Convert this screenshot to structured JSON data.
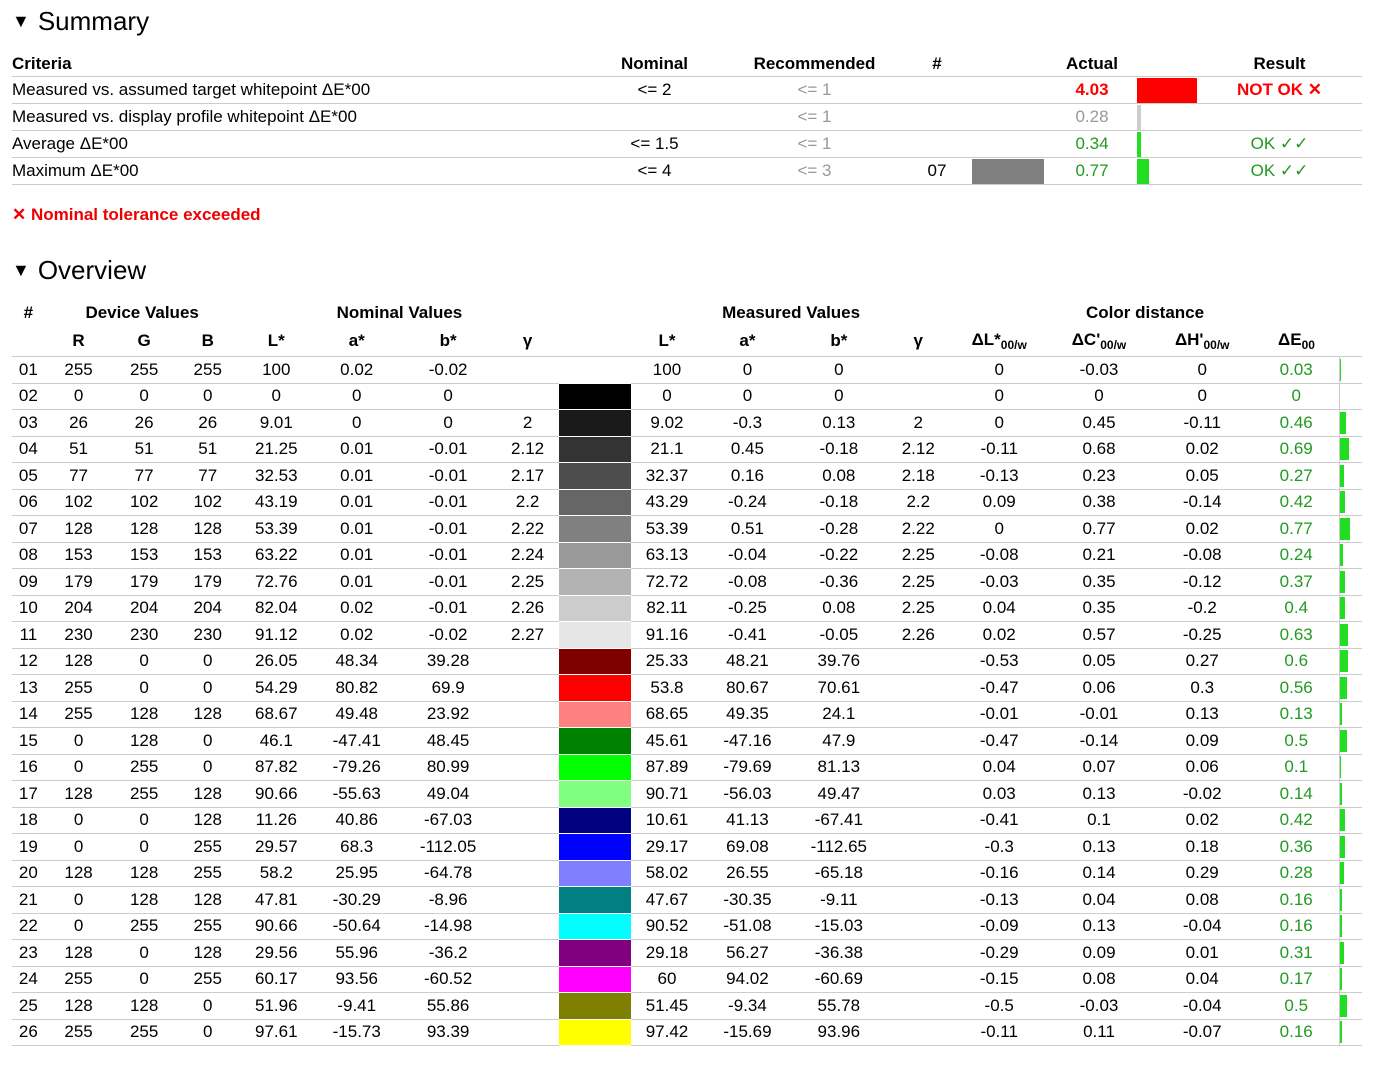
{
  "summary": {
    "heading": "Summary",
    "headers": {
      "criteria": "Criteria",
      "nominal": "Nominal",
      "recommended": "Recommended",
      "num": "#",
      "actual": "Actual",
      "result": "Result"
    },
    "rows": [
      {
        "criteria": "Measured vs. assumed target whitepoint ΔE*00",
        "nominal": "<= 2",
        "recommended": "<= 1",
        "num": "",
        "actual": "4.03",
        "result": "NOT OK ✕",
        "status": "fail",
        "bar_fraction": 1.0,
        "bar_color": "#ff0000"
      },
      {
        "criteria": "Measured vs. display profile whitepoint ΔE*00",
        "nominal": "",
        "recommended": "<= 1",
        "num": "",
        "actual": "0.28",
        "result": "",
        "status": "info",
        "bar_fraction": 0.05,
        "bar_color": "#cccccc"
      },
      {
        "criteria": "Average ΔE*00",
        "nominal": "<= 1.5",
        "recommended": "<= 1",
        "num": "",
        "actual": "0.34",
        "result": "OK ✓✓",
        "status": "ok",
        "bar_fraction": 0.07,
        "bar_color": "#22dd22"
      },
      {
        "criteria": "Maximum ΔE*00",
        "nominal": "<= 4",
        "recommended": "<= 3",
        "num": "07",
        "actual": "0.77",
        "result": "OK ✓✓",
        "status": "ok",
        "bar_fraction": 0.2,
        "bar_color": "#22dd22",
        "patch_color": "#808080"
      }
    ],
    "warning": "✕ Nominal tolerance exceeded"
  },
  "overview": {
    "heading": "Overview",
    "group_headers": {
      "num": "#",
      "device": "Device Values",
      "nominal": "Nominal Values",
      "measured": "Measured Values",
      "distance": "Color distance"
    },
    "col_headers": {
      "r": "R",
      "g": "G",
      "b": "B",
      "L": "L*",
      "a": "a*",
      "bb": "b*",
      "gamma": "γ",
      "mL": "L*",
      "ma": "a*",
      "mb": "b*",
      "mgamma": "γ",
      "dL": "ΔL*",
      "dC": "ΔC'",
      "dH": "ΔH'",
      "dE": "ΔE",
      "sub_w": "00/w",
      "sub": "00"
    },
    "rows": [
      [
        "01",
        "255",
        "255",
        "255",
        "100",
        "0.02",
        "-0.02",
        "",
        "#ffffff",
        "100",
        "0",
        "0",
        "",
        "0",
        "-0.03",
        "0",
        "0.03"
      ],
      [
        "02",
        "0",
        "0",
        "0",
        "0",
        "0",
        "0",
        "",
        "#000000",
        "0",
        "0",
        "0",
        "",
        "0",
        "0",
        "0",
        "0"
      ],
      [
        "03",
        "26",
        "26",
        "26",
        "9.01",
        "0",
        "0",
        "2",
        "#1a1a1a",
        "9.02",
        "-0.3",
        "0.13",
        "2",
        "0",
        "0.45",
        "-0.11",
        "0.46"
      ],
      [
        "04",
        "51",
        "51",
        "51",
        "21.25",
        "0.01",
        "-0.01",
        "2.12",
        "#333333",
        "21.1",
        "0.45",
        "-0.18",
        "2.12",
        "-0.11",
        "0.68",
        "0.02",
        "0.69"
      ],
      [
        "05",
        "77",
        "77",
        "77",
        "32.53",
        "0.01",
        "-0.01",
        "2.17",
        "#4d4d4d",
        "32.37",
        "0.16",
        "0.08",
        "2.18",
        "-0.13",
        "0.23",
        "0.05",
        "0.27"
      ],
      [
        "06",
        "102",
        "102",
        "102",
        "43.19",
        "0.01",
        "-0.01",
        "2.2",
        "#666666",
        "43.29",
        "-0.24",
        "-0.18",
        "2.2",
        "0.09",
        "0.38",
        "-0.14",
        "0.42"
      ],
      [
        "07",
        "128",
        "128",
        "128",
        "53.39",
        "0.01",
        "-0.01",
        "2.22",
        "#808080",
        "53.39",
        "0.51",
        "-0.28",
        "2.22",
        "0",
        "0.77",
        "0.02",
        "0.77"
      ],
      [
        "08",
        "153",
        "153",
        "153",
        "63.22",
        "0.01",
        "-0.01",
        "2.24",
        "#999999",
        "63.13",
        "-0.04",
        "-0.22",
        "2.25",
        "-0.08",
        "0.21",
        "-0.08",
        "0.24"
      ],
      [
        "09",
        "179",
        "179",
        "179",
        "72.76",
        "0.01",
        "-0.01",
        "2.25",
        "#b3b3b3",
        "72.72",
        "-0.08",
        "-0.36",
        "2.25",
        "-0.03",
        "0.35",
        "-0.12",
        "0.37"
      ],
      [
        "10",
        "204",
        "204",
        "204",
        "82.04",
        "0.02",
        "-0.01",
        "2.26",
        "#cccccc",
        "82.11",
        "-0.25",
        "0.08",
        "2.25",
        "0.04",
        "0.35",
        "-0.2",
        "0.4"
      ],
      [
        "11",
        "230",
        "230",
        "230",
        "91.12",
        "0.02",
        "-0.02",
        "2.27",
        "#e6e6e6",
        "91.16",
        "-0.41",
        "-0.05",
        "2.26",
        "0.02",
        "0.57",
        "-0.25",
        "0.63"
      ],
      [
        "12",
        "128",
        "0",
        "0",
        "26.05",
        "48.34",
        "39.28",
        "",
        "#800000",
        "25.33",
        "48.21",
        "39.76",
        "",
        "-0.53",
        "0.05",
        "0.27",
        "0.6"
      ],
      [
        "13",
        "255",
        "0",
        "0",
        "54.29",
        "80.82",
        "69.9",
        "",
        "#ff0000",
        "53.8",
        "80.67",
        "70.61",
        "",
        "-0.47",
        "0.06",
        "0.3",
        "0.56"
      ],
      [
        "14",
        "255",
        "128",
        "128",
        "68.67",
        "49.48",
        "23.92",
        "",
        "#ff8080",
        "68.65",
        "49.35",
        "24.1",
        "",
        "-0.01",
        "-0.01",
        "0.13",
        "0.13"
      ],
      [
        "15",
        "0",
        "128",
        "0",
        "46.1",
        "-47.41",
        "48.45",
        "",
        "#008000",
        "45.61",
        "-47.16",
        "47.9",
        "",
        "-0.47",
        "-0.14",
        "0.09",
        "0.5"
      ],
      [
        "16",
        "0",
        "255",
        "0",
        "87.82",
        "-79.26",
        "80.99",
        "",
        "#00ff00",
        "87.89",
        "-79.69",
        "81.13",
        "",
        "0.04",
        "0.07",
        "0.06",
        "0.1"
      ],
      [
        "17",
        "128",
        "255",
        "128",
        "90.66",
        "-55.63",
        "49.04",
        "",
        "#80ff80",
        "90.71",
        "-56.03",
        "49.47",
        "",
        "0.03",
        "0.13",
        "-0.02",
        "0.14"
      ],
      [
        "18",
        "0",
        "0",
        "128",
        "11.26",
        "40.86",
        "-67.03",
        "",
        "#000080",
        "10.61",
        "41.13",
        "-67.41",
        "",
        "-0.41",
        "0.1",
        "0.02",
        "0.42"
      ],
      [
        "19",
        "0",
        "0",
        "255",
        "29.57",
        "68.3",
        "-112.05",
        "",
        "#0000ff",
        "29.17",
        "69.08",
        "-112.65",
        "",
        "-0.3",
        "0.13",
        "0.18",
        "0.36"
      ],
      [
        "20",
        "128",
        "128",
        "255",
        "58.2",
        "25.95",
        "-64.78",
        "",
        "#8080ff",
        "58.02",
        "26.55",
        "-65.18",
        "",
        "-0.16",
        "0.14",
        "0.29",
        "0.28"
      ],
      [
        "21",
        "0",
        "128",
        "128",
        "47.81",
        "-30.29",
        "-8.96",
        "",
        "#008080",
        "47.67",
        "-30.35",
        "-9.11",
        "",
        "-0.13",
        "0.04",
        "0.08",
        "0.16"
      ],
      [
        "22",
        "0",
        "255",
        "255",
        "90.66",
        "-50.64",
        "-14.98",
        "",
        "#00ffff",
        "90.52",
        "-51.08",
        "-15.03",
        "",
        "-0.09",
        "0.13",
        "-0.04",
        "0.16"
      ],
      [
        "23",
        "128",
        "0",
        "128",
        "29.56",
        "55.96",
        "-36.2",
        "",
        "#800080",
        "29.18",
        "56.27",
        "-36.38",
        "",
        "-0.29",
        "0.09",
        "0.01",
        "0.31"
      ],
      [
        "24",
        "255",
        "0",
        "255",
        "60.17",
        "93.56",
        "-60.52",
        "",
        "#ff00ff",
        "60",
        "94.02",
        "-60.69",
        "",
        "-0.15",
        "0.08",
        "0.04",
        "0.17"
      ],
      [
        "25",
        "128",
        "128",
        "0",
        "51.96",
        "-9.41",
        "55.86",
        "",
        "#808000",
        "51.45",
        "-9.34",
        "55.78",
        "",
        "-0.5",
        "-0.03",
        "-0.04",
        "0.5"
      ],
      [
        "26",
        "255",
        "255",
        "0",
        "97.61",
        "-15.73",
        "93.39",
        "",
        "#ffff00",
        "97.42",
        "-15.69",
        "93.96",
        "",
        "-0.11",
        "0.11",
        "-0.07",
        "0.16"
      ]
    ]
  }
}
